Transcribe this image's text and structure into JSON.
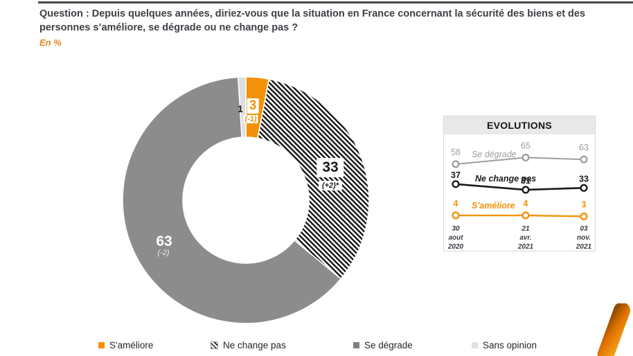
{
  "header": {
    "question": "Question : Depuis quelques années, diriez-vous que la situation en France concernant la sécurité des biens et des personnes s’améliore, se dégrade ou ne change pas ?",
    "unit_note": "En %"
  },
  "colors": {
    "orange": "#F39208",
    "gray": "#8C8C8C",
    "light_gray": "#DEDEDE",
    "black": "#1A1A1A",
    "line_gray": "#9E9E9E"
  },
  "chart_data": [
    {
      "type": "pie",
      "subtype": "donut",
      "start_angle_deg": 0,
      "direction": "clockwise",
      "slices": [
        {
          "label": "S'améliore",
          "value": 3,
          "change": "(-1)",
          "style": "orange"
        },
        {
          "label": "Ne change pas",
          "value": 33,
          "change": "(+2)*",
          "style": "hatched"
        },
        {
          "label": "Se dégrade",
          "value": 63,
          "change": "(-2)",
          "style": "gray"
        },
        {
          "label": "Sans opinion",
          "value": 1,
          "change": "",
          "style": "light_gray"
        }
      ]
    },
    {
      "type": "line",
      "title": "EVOLUTIONS",
      "categories": [
        [
          "30",
          "aout",
          "2020"
        ],
        [
          "21",
          "avr.",
          "2021"
        ],
        [
          "03",
          "nov.",
          "2021"
        ]
      ],
      "series": [
        {
          "name": "Se dégrade",
          "values": [
            58,
            65,
            63
          ],
          "color": "#9e9e9e"
        },
        {
          "name": "Ne change pas",
          "values": [
            37,
            31,
            33
          ],
          "color": "#1a1a1a"
        },
        {
          "name": "S'améliore",
          "values": [
            4,
            4,
            3
          ],
          "color": "#f39208"
        }
      ],
      "ylim": [
        0,
        109
      ],
      "grid": false,
      "markers": "open-circle",
      "legend_position": "inline-labels"
    }
  ],
  "legend": {
    "items": [
      {
        "label": "S'améliore",
        "style": "orange"
      },
      {
        "label": "Ne change pas",
        "style": "hatched"
      },
      {
        "label": "Se dégrade",
        "style": "gray"
      },
      {
        "label": "Sans opinion",
        "style": "light_gray"
      }
    ]
  }
}
